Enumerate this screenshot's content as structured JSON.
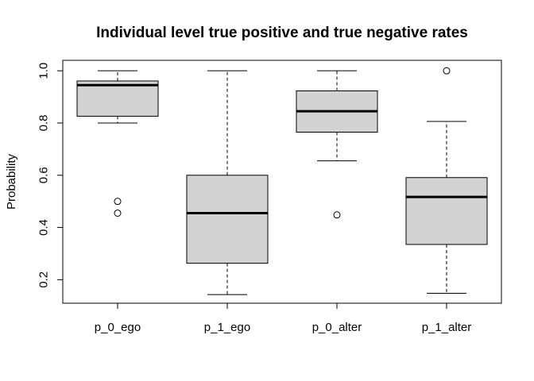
{
  "chart_data": {
    "type": "boxplot",
    "title": "Individual level true positive and true negative rates",
    "xlabel": "",
    "ylabel": "Probability",
    "ylim": [
      0.11,
      1.04
    ],
    "yticks": [
      0.2,
      0.4,
      0.6,
      0.8,
      1.0
    ],
    "ytick_labels": [
      "0.2",
      "0.4",
      "0.6",
      "0.8",
      "1.0"
    ],
    "grid": false,
    "box_fill": "#d3d3d3",
    "categories": [
      "p_0_ego",
      "p_1_ego",
      "p_0_alter",
      "p_1_alter"
    ],
    "boxes": [
      {
        "name": "p_0_ego",
        "whisker_low": 0.8,
        "q1": 0.826,
        "median": 0.945,
        "q3": 0.961,
        "whisker_high": 1.0,
        "outliers": [
          0.5,
          0.455
        ]
      },
      {
        "name": "p_1_ego",
        "whisker_low": 0.143,
        "q1": 0.263,
        "median": 0.455,
        "q3": 0.6,
        "whisker_high": 1.0,
        "outliers": []
      },
      {
        "name": "p_0_alter",
        "whisker_low": 0.655,
        "q1": 0.765,
        "median": 0.845,
        "q3": 0.923,
        "whisker_high": 1.0,
        "outliers": [
          0.448
        ]
      },
      {
        "name": "p_1_alter",
        "whisker_low": 0.148,
        "q1": 0.335,
        "median": 0.517,
        "q3": 0.591,
        "whisker_high": 0.806,
        "outliers": [
          1.0
        ]
      }
    ]
  }
}
